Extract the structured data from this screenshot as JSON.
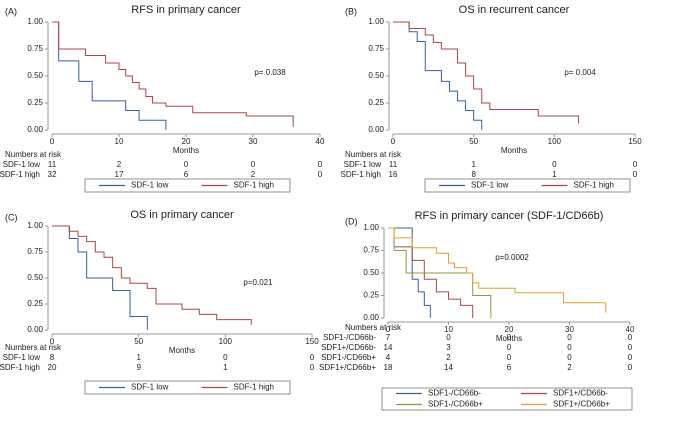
{
  "chart_data": [
    {
      "type": "step",
      "panel_label": "(A)",
      "title": "RFS in primary cancer",
      "xlabel": "Months",
      "xlim": [
        0,
        40
      ],
      "xticks": [
        0,
        10,
        20,
        30,
        40
      ],
      "ylim": [
        0,
        1
      ],
      "yticks": [
        {
          "value": 0,
          "label": "0.00"
        },
        {
          "value": 0.25,
          "label": "0.25"
        },
        {
          "value": 0.5,
          "label": "0.50"
        },
        {
          "value": 0.75,
          "label": "0.75"
        },
        {
          "value": 1,
          "label": "1.00"
        }
      ],
      "annotation": "p= 0.038",
      "series": [
        {
          "name": "SDF-1 low",
          "color": "#3a5f9a",
          "x": [
            0,
            1,
            4,
            6,
            11,
            13,
            17
          ],
          "values": [
            1,
            0.64,
            0.45,
            0.27,
            0.18,
            0.09,
            0
          ]
        },
        {
          "name": "SDF-1 high",
          "color": "#a8484a",
          "x": [
            0,
            1,
            5,
            8,
            10,
            11,
            12,
            13,
            14,
            15,
            17,
            21,
            29,
            36
          ],
          "values": [
            1,
            0.75,
            0.69,
            0.62,
            0.56,
            0.5,
            0.44,
            0.38,
            0.31,
            0.25,
            0.22,
            0.16,
            0.13,
            0.03
          ]
        }
      ],
      "risk_table": {
        "title": "Numbers at risk",
        "rows": [
          {
            "label": "SDF-1 low",
            "values": [
              11,
              2,
              0,
              0,
              0
            ]
          },
          {
            "label": "SDF-1 high",
            "values": [
              32,
              17,
              6,
              2,
              0
            ]
          }
        ]
      }
    },
    {
      "type": "step",
      "panel_label": "(B)",
      "title": "OS in recurrent cancer",
      "xlabel": "Months",
      "xlim": [
        0,
        150
      ],
      "xticks": [
        0,
        50,
        100,
        150
      ],
      "ylim": [
        0,
        1
      ],
      "yticks": [
        {
          "value": 0,
          "label": "0.00"
        },
        {
          "value": 0.25,
          "label": "0.25"
        },
        {
          "value": 0.5,
          "label": "0.50"
        },
        {
          "value": 0.75,
          "label": "0.75"
        },
        {
          "value": 1,
          "label": "1.00"
        }
      ],
      "annotation": "p= 0.004",
      "series": [
        {
          "name": "SDF-1 low",
          "color": "#3a5f9a",
          "x": [
            0,
            10,
            15,
            20,
            30,
            35,
            40,
            45,
            50,
            55
          ],
          "values": [
            1,
            0.91,
            0.82,
            0.55,
            0.45,
            0.36,
            0.27,
            0.18,
            0.09,
            0
          ]
        },
        {
          "name": "SDF-1 high",
          "color": "#a8484a",
          "x": [
            0,
            10,
            20,
            25,
            30,
            40,
            45,
            50,
            55,
            60,
            90,
            115
          ],
          "values": [
            1,
            0.94,
            0.88,
            0.81,
            0.75,
            0.62,
            0.5,
            0.38,
            0.25,
            0.19,
            0.13,
            0.06
          ]
        }
      ],
      "risk_table": {
        "title": "Numbers at risk",
        "rows": [
          {
            "label": "SDF-1 low",
            "values": [
              11,
              1,
              0,
              0
            ]
          },
          {
            "label": "SDF-1 high",
            "values": [
              16,
              8,
              1,
              0
            ]
          }
        ]
      }
    },
    {
      "type": "step",
      "panel_label": "(C)",
      "title": "OS in primary cancer",
      "xlabel": "Months",
      "xlim": [
        0,
        150
      ],
      "xticks": [
        0,
        50,
        100,
        150
      ],
      "ylim": [
        0,
        1
      ],
      "yticks": [
        {
          "value": 0,
          "label": "0.00"
        },
        {
          "value": 0.25,
          "label": "0.25"
        },
        {
          "value": 0.5,
          "label": "0.50"
        },
        {
          "value": 0.75,
          "label": "0.75"
        },
        {
          "value": 1,
          "label": "1.00"
        }
      ],
      "annotation": "p=0.021",
      "series": [
        {
          "name": "SDF-1 low",
          "color": "#3a5f9a",
          "x": [
            0,
            10,
            15,
            20,
            35,
            45,
            55
          ],
          "values": [
            1,
            0.88,
            0.75,
            0.5,
            0.38,
            0.13,
            0
          ]
        },
        {
          "name": "SDF-1 high",
          "color": "#a8484a",
          "x": [
            0,
            10,
            15,
            20,
            25,
            30,
            35,
            40,
            45,
            55,
            60,
            75,
            85,
            95,
            115
          ],
          "values": [
            1,
            0.95,
            0.9,
            0.85,
            0.75,
            0.7,
            0.6,
            0.5,
            0.45,
            0.4,
            0.25,
            0.2,
            0.15,
            0.1,
            0.05
          ]
        }
      ],
      "risk_table": {
        "title": "Numbers at risk",
        "rows": [
          {
            "label": "SDF-1 low",
            "values": [
              8,
              1,
              0,
              0
            ]
          },
          {
            "label": "SDF-1 high",
            "values": [
              20,
              9,
              1,
              0
            ]
          }
        ]
      }
    },
    {
      "type": "step",
      "panel_label": "(D)",
      "title": "RFS in primary cancer (SDF-1/CD66b)",
      "xlabel": "Months",
      "xlim": [
        0,
        40
      ],
      "xticks": [
        0,
        10,
        20,
        30,
        40
      ],
      "ylim": [
        0,
        1
      ],
      "yticks": [
        {
          "value": 0,
          "label": "0.00"
        },
        {
          "value": 0.25,
          "label": "0.25"
        },
        {
          "value": 0.5,
          "label": "0.50"
        },
        {
          "value": 0.75,
          "label": "0.75"
        },
        {
          "value": 1,
          "label": "1.00"
        }
      ],
      "annotation": "p=0.0002",
      "series": [
        {
          "name": "SDF1-/CD66b-",
          "color": "#3a5f9a",
          "x": [
            0,
            4,
            5,
            6,
            7
          ],
          "values": [
            1,
            0.43,
            0.29,
            0.14,
            0
          ]
        },
        {
          "name": "SDF1+/CD66b-",
          "color": "#a8484a",
          "x": [
            0,
            1,
            4,
            6,
            8,
            10,
            12,
            14
          ],
          "values": [
            1,
            0.79,
            0.64,
            0.43,
            0.29,
            0.21,
            0.14,
            0
          ]
        },
        {
          "name": "SDF1-/CD66b+",
          "color": "#8a9a40",
          "x": [
            0,
            1,
            3,
            14,
            17
          ],
          "values": [
            1,
            0.75,
            0.5,
            0.25,
            0
          ]
        },
        {
          "name": "SDF1+/CD66b+",
          "color": "#e0a030",
          "x": [
            0,
            1,
            4,
            8,
            10,
            11,
            13,
            14,
            15,
            21,
            29,
            36
          ],
          "values": [
            1,
            0.89,
            0.78,
            0.72,
            0.61,
            0.56,
            0.5,
            0.39,
            0.33,
            0.28,
            0.17,
            0.06
          ]
        }
      ],
      "risk_table": {
        "title": "Numbers at risk",
        "rows": [
          {
            "label": "SDF1-/CD66b-",
            "values": [
              7,
              0,
              0,
              0,
              0
            ]
          },
          {
            "label": "SDF1+/CD66b-",
            "values": [
              14,
              3,
              0,
              0,
              0
            ]
          },
          {
            "label": "SDF1-/CD66b+",
            "values": [
              4,
              2,
              0,
              0,
              0
            ]
          },
          {
            "label": "SDF1+/CD66b+",
            "values": [
              18,
              14,
              6,
              2,
              0
            ]
          }
        ]
      }
    }
  ]
}
